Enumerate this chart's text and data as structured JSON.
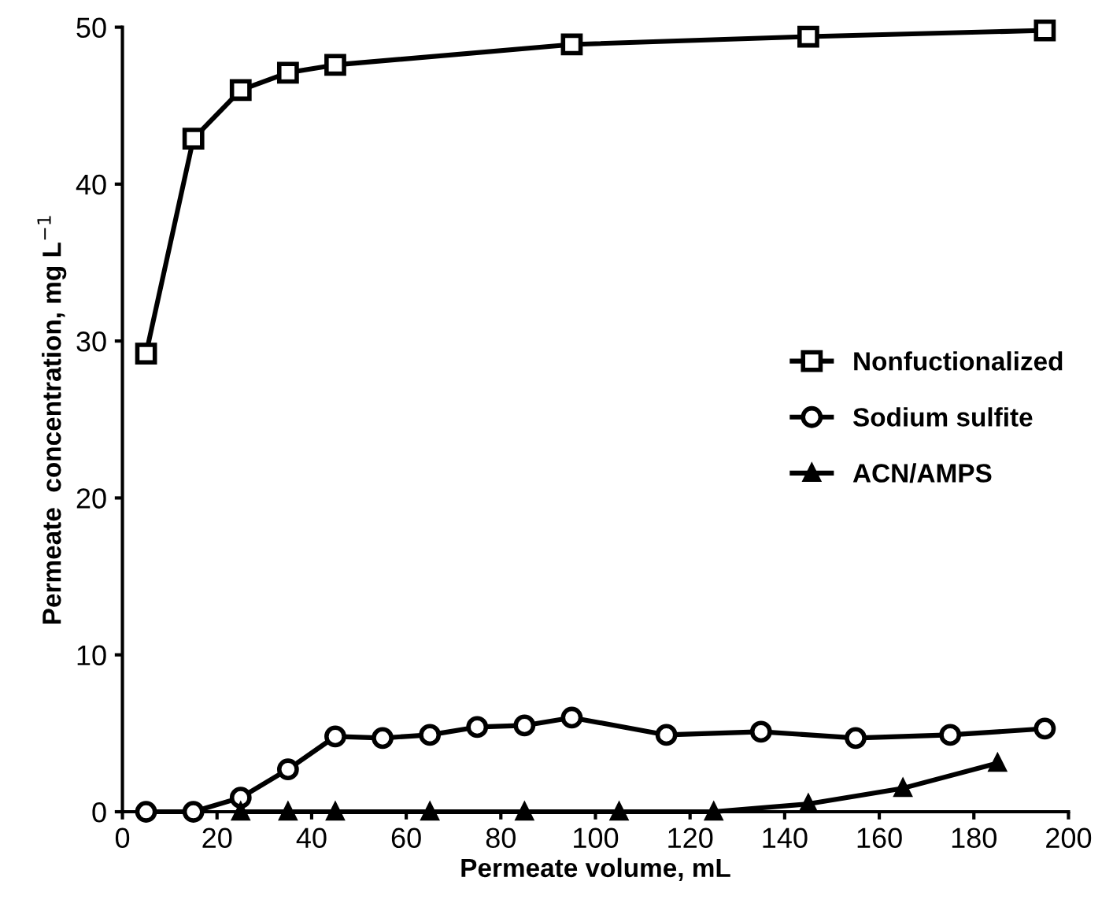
{
  "chart_data": {
    "type": "line",
    "xlabel": "Permeate volume, mL",
    "ylabel": "Permeate  concentration, mg L$^{−1}$",
    "xlim": [
      0,
      200
    ],
    "xticks": [
      0,
      20,
      40,
      60,
      80,
      100,
      120,
      140,
      160,
      180,
      200
    ],
    "ylim": [
      0,
      50
    ],
    "yticks": [
      0,
      10,
      20,
      30,
      40,
      50
    ],
    "grid": false,
    "legend": "right",
    "line_style": "solid",
    "series": [
      {
        "name": "Nonfuctionalized",
        "color": "#000000",
        "marker": "square",
        "x": [
          5,
          15,
          25,
          35,
          45,
          95,
          145,
          195
        ],
        "values": [
          29.2,
          42.9,
          46.0,
          47.1,
          47.6,
          48.9,
          49.4,
          49.8
        ]
      },
      {
        "name": "Sodium sulfite",
        "color": "#000000",
        "marker": "circle",
        "x": [
          5,
          15,
          25,
          35,
          45,
          55,
          65,
          75,
          85,
          95,
          115,
          135,
          155,
          175,
          195
        ],
        "values": [
          0,
          0,
          0.9,
          2.7,
          4.8,
          4.7,
          4.9,
          5.4,
          5.5,
          6.0,
          4.9,
          5.1,
          4.7,
          4.9,
          5.3
        ]
      },
      {
        "name": "ACN/AMPS",
        "color": "#000000",
        "marker": "triangle",
        "x": [
          25,
          35,
          45,
          65,
          85,
          105,
          125,
          145,
          165,
          185
        ],
        "values": [
          0,
          0,
          0,
          0,
          0,
          0,
          0,
          0.5,
          1.5,
          3.1
        ]
      }
    ]
  }
}
